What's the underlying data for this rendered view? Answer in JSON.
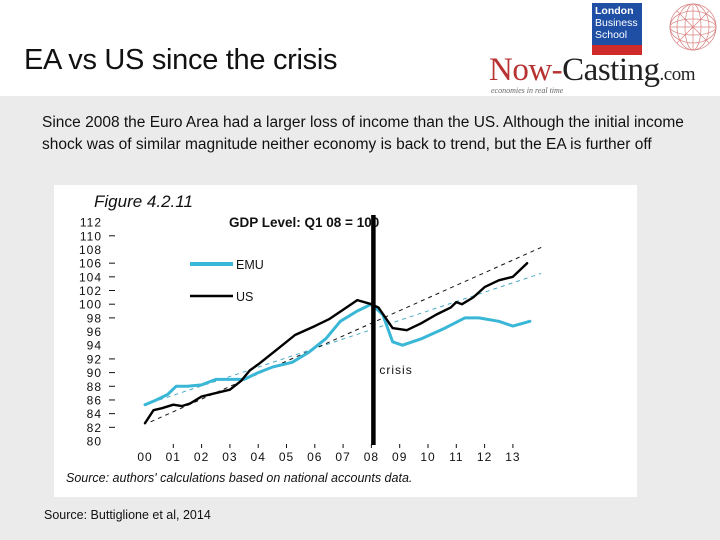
{
  "slide": {
    "title": "EA vs US since the crisis",
    "intro": "Since 2008 the Euro Area had a larger loss of income than the US. Although the initial income shock was of similar magnitude neither economy is back to trend, but the EA is further off",
    "source": "Source: Buttiglione et al, 2014"
  },
  "logos": {
    "lbs_line1": "London",
    "lbs_line2": "Business",
    "lbs_line3": "School",
    "nowcasting_now": "Now",
    "nowcasting_dash": "-",
    "nowcasting_casting": "Casting",
    "nowcasting_com": ".com",
    "tagline": "economies in real time"
  },
  "colors": {
    "emu": "#3ab7d6",
    "us": "#000000",
    "emu_trend": "#4aa8c4",
    "us_trend": "#111111",
    "background": "#ebebeb",
    "brand_red": "#b83232",
    "lbs_blue": "#1f4fa5"
  },
  "chart_data": {
    "type": "line",
    "figure_label": "Figure 4.2.11",
    "title": "GDP Level: Q1 08 = 100",
    "xlabel": "",
    "ylabel": "",
    "xlim": [
      2000,
      2014
    ],
    "ylim": [
      80,
      112
    ],
    "yticks": [
      80,
      82,
      84,
      86,
      88,
      90,
      92,
      94,
      96,
      98,
      100,
      102,
      104,
      106,
      108,
      110,
      112
    ],
    "xtick_labels": [
      "00",
      "01",
      "02",
      "03",
      "04",
      "05",
      "06",
      "07",
      "08",
      "09",
      "10",
      "11",
      "12",
      "13"
    ],
    "legend": [
      "EMU",
      "US"
    ],
    "legend_placement": "upper-left",
    "annotation": "crisis",
    "crisis_x": 2008.0,
    "caption": "Source: authors' calculations based on national accounts data.",
    "series": [
      {
        "name": "EMU",
        "x": [
          2000.0,
          2000.4,
          2000.8,
          2001.1,
          2001.5,
          2002.0,
          2002.5,
          2003.0,
          2003.5,
          2004.0,
          2004.5,
          2005.2,
          2005.8,
          2006.4,
          2006.9,
          2007.5,
          2008.0,
          2008.4,
          2008.75,
          2009.1,
          2009.8,
          2010.6,
          2011.3,
          2011.8,
          2012.5,
          2013.0,
          2013.6
        ],
        "values": [
          85.3,
          86.0,
          86.8,
          88.0,
          88.0,
          88.2,
          89.0,
          89.0,
          89.0,
          90.0,
          90.8,
          91.5,
          93.0,
          95.0,
          97.5,
          99.0,
          100.0,
          98.5,
          94.5,
          94.0,
          95.0,
          96.5,
          98.0,
          98.0,
          97.5,
          96.8,
          97.5
        ]
      },
      {
        "name": "US",
        "x": [
          2000.0,
          2000.3,
          2000.6,
          2001.0,
          2001.3,
          2001.6,
          2002.0,
          2002.5,
          2003.0,
          2003.4,
          2003.7,
          2004.0,
          2004.7,
          2005.3,
          2006.0,
          2006.5,
          2007.0,
          2007.5,
          2008.0,
          2008.25,
          2008.75,
          2009.25,
          2009.75,
          2010.3,
          2010.8,
          2011.0,
          2011.2,
          2011.6,
          2012.0,
          2012.5,
          2013.0,
          2013.5
        ],
        "values": [
          82.6,
          84.5,
          84.8,
          85.3,
          85.1,
          85.5,
          86.5,
          87.0,
          87.5,
          88.8,
          90.3,
          91.2,
          93.5,
          95.5,
          96.8,
          97.8,
          99.2,
          100.6,
          100.0,
          99.5,
          96.5,
          96.2,
          97.2,
          98.5,
          99.5,
          100.3,
          100.0,
          101.0,
          102.5,
          103.5,
          104.0,
          106.0
        ]
      }
    ],
    "trends": [
      {
        "name": "EMU trend",
        "x": [
          2000.5,
          2014.0
        ],
        "values": [
          86.0,
          104.5
        ]
      },
      {
        "name": "US trend",
        "x": [
          2000.2,
          2014.0
        ],
        "values": [
          82.8,
          108.3
        ]
      }
    ]
  }
}
